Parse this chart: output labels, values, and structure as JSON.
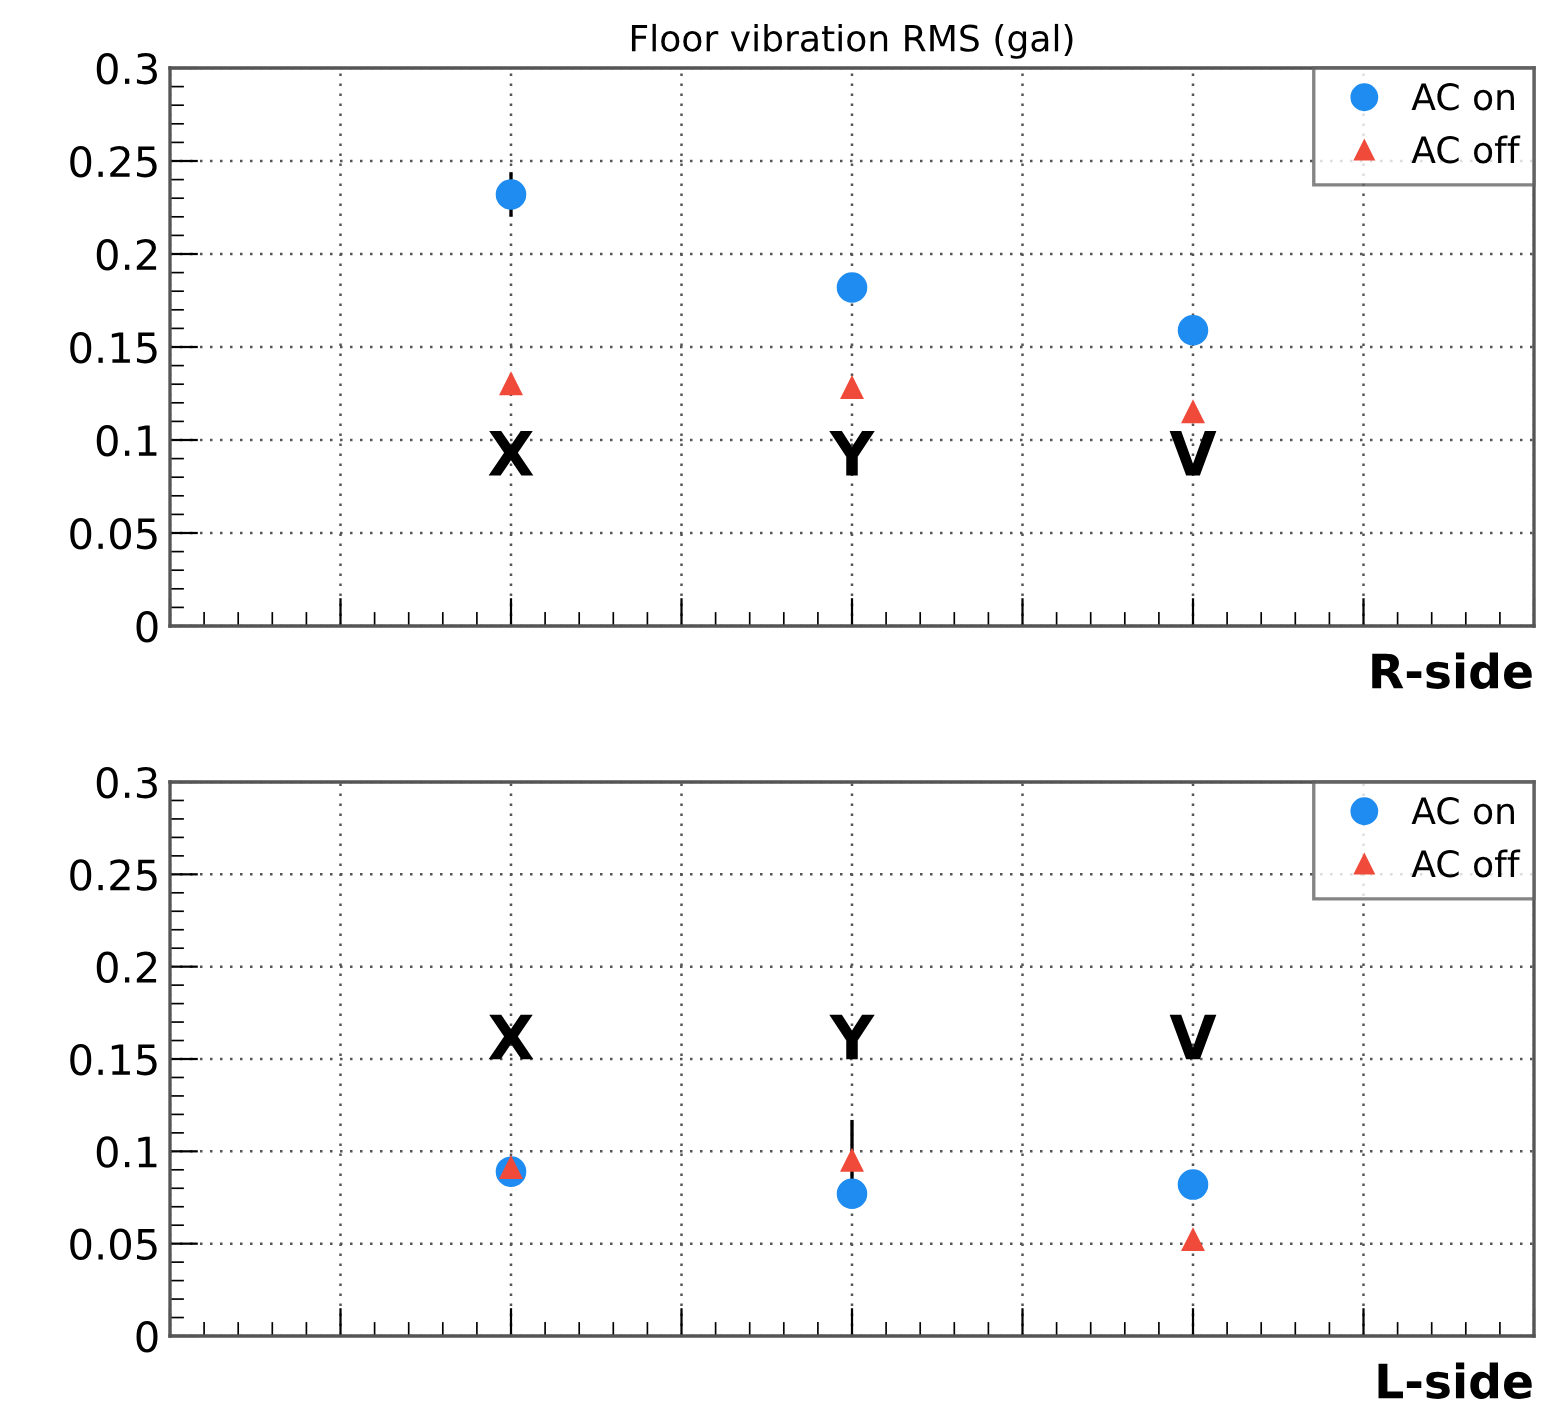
{
  "chart_data": [
    {
      "type": "scatter",
      "title": "Floor vibration RMS (gal)",
      "xlabel": "R-side",
      "categories": [
        "X",
        "Y",
        "V"
      ],
      "series": [
        {
          "name": "AC on",
          "color": "#1e8cf0",
          "marker": "circle",
          "values": [
            0.232,
            0.182,
            0.159
          ],
          "errors": [
            0.012,
            null,
            null
          ]
        },
        {
          "name": "AC off",
          "color": "#f04a3a",
          "marker": "triangle",
          "values": [
            0.13,
            0.128,
            0.115
          ]
        }
      ],
      "ylim": [
        0,
        0.3
      ],
      "yticks": [
        0,
        0.05,
        0.1,
        0.15,
        0.2,
        0.25,
        0.3
      ],
      "grid": true,
      "legend": "top right"
    },
    {
      "type": "scatter",
      "xlabel": "L-side",
      "categories": [
        "X",
        "Y",
        "V"
      ],
      "series": [
        {
          "name": "AC on",
          "color": "#1e8cf0",
          "marker": "circle",
          "values": [
            0.089,
            0.077,
            0.082
          ]
        },
        {
          "name": "AC off",
          "color": "#f04a3a",
          "marker": "triangle",
          "values": [
            0.091,
            0.095,
            0.052
          ],
          "errors": [
            null,
            0.022,
            null
          ]
        }
      ],
      "ylim": [
        0,
        0.3
      ],
      "yticks": [
        0,
        0.05,
        0.1,
        0.15,
        0.2,
        0.25,
        0.3
      ],
      "grid": true,
      "legend": "top right"
    }
  ]
}
